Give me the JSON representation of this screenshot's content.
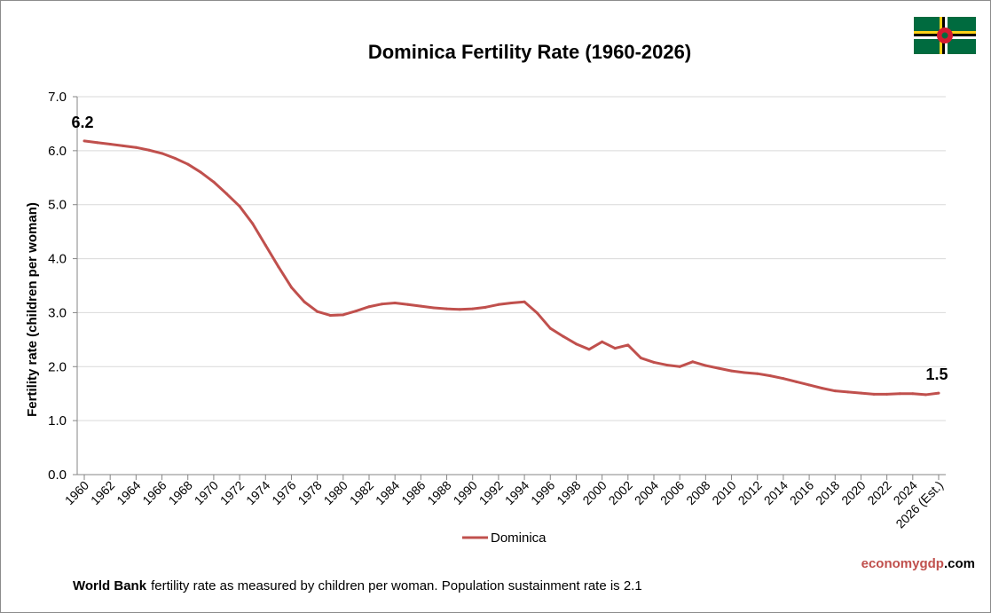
{
  "chart_data": {
    "type": "line",
    "title": "Dominica Fertility Rate (1960-2026)",
    "ylabel": "Fertility rate (children per woman)",
    "xlabel": "",
    "ylim": [
      0,
      7
    ],
    "y_ticks": [
      "0.0",
      "1.0",
      "2.0",
      "3.0",
      "4.0",
      "5.0",
      "6.0",
      "7.0"
    ],
    "x_tick_labels": [
      "1960",
      "1962",
      "1964",
      "1966",
      "1968",
      "1970",
      "1972",
      "1974",
      "1976",
      "1978",
      "1980",
      "1982",
      "1984",
      "1986",
      "1988",
      "1990",
      "1992",
      "1994",
      "1996",
      "1998",
      "2000",
      "2002",
      "2004",
      "2006",
      "2008",
      "2010",
      "2012",
      "2014",
      "2016",
      "2018",
      "2020",
      "2022",
      "2024",
      "2026 (Est.)"
    ],
    "grid": "horizontal",
    "legend_position": "bottom",
    "categories": [
      "1960",
      "1961",
      "1962",
      "1963",
      "1964",
      "1965",
      "1966",
      "1967",
      "1968",
      "1969",
      "1970",
      "1971",
      "1972",
      "1973",
      "1974",
      "1975",
      "1976",
      "1977",
      "1978",
      "1979",
      "1980",
      "1981",
      "1982",
      "1983",
      "1984",
      "1985",
      "1986",
      "1987",
      "1988",
      "1989",
      "1990",
      "1991",
      "1992",
      "1993",
      "1994",
      "1995",
      "1996",
      "1997",
      "1998",
      "1999",
      "2000",
      "2001",
      "2002",
      "2003",
      "2004",
      "2005",
      "2006",
      "2007",
      "2008",
      "2009",
      "2010",
      "2011",
      "2012",
      "2013",
      "2014",
      "2015",
      "2016",
      "2017",
      "2018",
      "2019",
      "2020",
      "2021",
      "2022",
      "2023",
      "2024",
      "2025",
      "2026 (Est.)"
    ],
    "series": [
      {
        "name": "Dominica",
        "color": "#c0504d",
        "values": [
          6.18,
          6.15,
          6.12,
          6.09,
          6.06,
          6.01,
          5.95,
          5.86,
          5.75,
          5.6,
          5.42,
          5.2,
          4.97,
          4.65,
          4.25,
          3.85,
          3.47,
          3.2,
          3.02,
          2.95,
          2.96,
          3.03,
          3.11,
          3.16,
          3.18,
          3.15,
          3.12,
          3.09,
          3.07,
          3.06,
          3.07,
          3.1,
          3.15,
          3.18,
          3.2,
          2.99,
          2.71,
          2.56,
          2.42,
          2.32,
          2.46,
          2.34,
          2.4,
          2.16,
          2.08,
          2.03,
          2.0,
          2.09,
          2.02,
          1.97,
          1.92,
          1.89,
          1.87,
          1.83,
          1.78,
          1.72,
          1.66,
          1.6,
          1.55,
          1.53,
          1.51,
          1.49,
          1.49,
          1.5,
          1.5,
          1.48,
          1.51
        ]
      }
    ],
    "annotations": [
      {
        "text": "6.2",
        "category": "1960",
        "value": 6.18
      },
      {
        "text": "1.5",
        "category": "2026 (Est.)",
        "value": 1.51
      }
    ]
  },
  "footer": {
    "source_bold": "World Bank",
    "source_text": "fertility rate as measured by children per woman.  Population sustainment rate is 2.1"
  },
  "brand": {
    "part1": "economy",
    "part2": "gdp",
    "part3": ".com",
    "color1": "#c0504d",
    "color2": "#000000"
  },
  "flag": {
    "icon": "dominica-flag-icon",
    "green": "#006b3f",
    "yellow": "#fcd116",
    "black": "#000000",
    "white": "#ffffff",
    "red": "#d41c30"
  }
}
